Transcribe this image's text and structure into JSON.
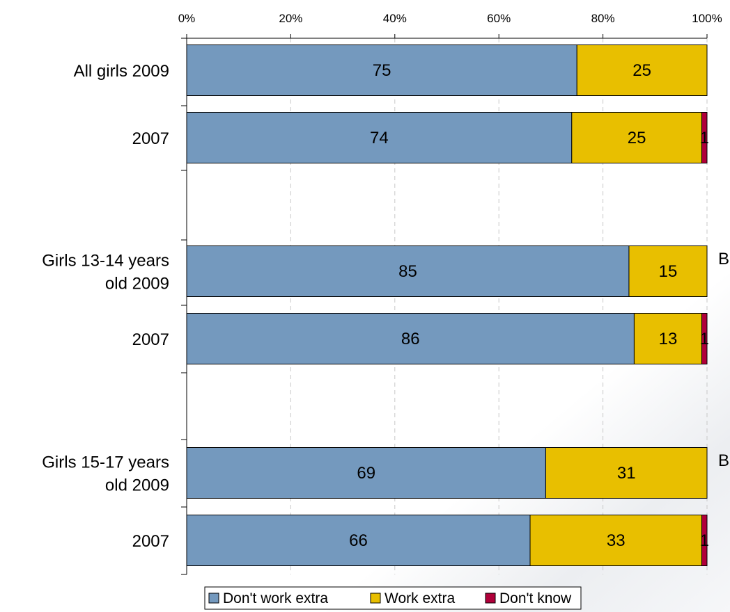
{
  "chart_data": {
    "type": "bar",
    "orientation": "horizontal",
    "stacked": true,
    "percent": true,
    "title": "",
    "xlabel": "",
    "ylabel": "",
    "xlim": [
      0,
      100
    ],
    "x_ticks": [
      "0%",
      "20%",
      "40%",
      "60%",
      "80%",
      "100%"
    ],
    "grid": "vertical dashed",
    "legend_position": "bottom",
    "categories": [
      [
        "All girls 2009"
      ],
      [
        "2007"
      ],
      [
        "Girls 13-14 years",
        "old 2009"
      ],
      [
        "2007"
      ],
      [
        "Girls 15-17 years",
        "old 2009"
      ],
      [
        "2007"
      ]
    ],
    "series": [
      {
        "name": "Don't work extra",
        "color": "#7499be",
        "values": [
          75,
          74,
          85,
          86,
          69,
          66
        ]
      },
      {
        "name": "Work extra",
        "color": "#e8bf00",
        "values": [
          25,
          25,
          15,
          13,
          31,
          33
        ]
      },
      {
        "name": "Don't know",
        "color": "#b0003a",
        "values": [
          0,
          1,
          0,
          1,
          0,
          1
        ]
      }
    ],
    "annotations": [
      {
        "category_index": 2,
        "text": "B"
      },
      {
        "category_index": 4,
        "text": "B"
      }
    ]
  }
}
